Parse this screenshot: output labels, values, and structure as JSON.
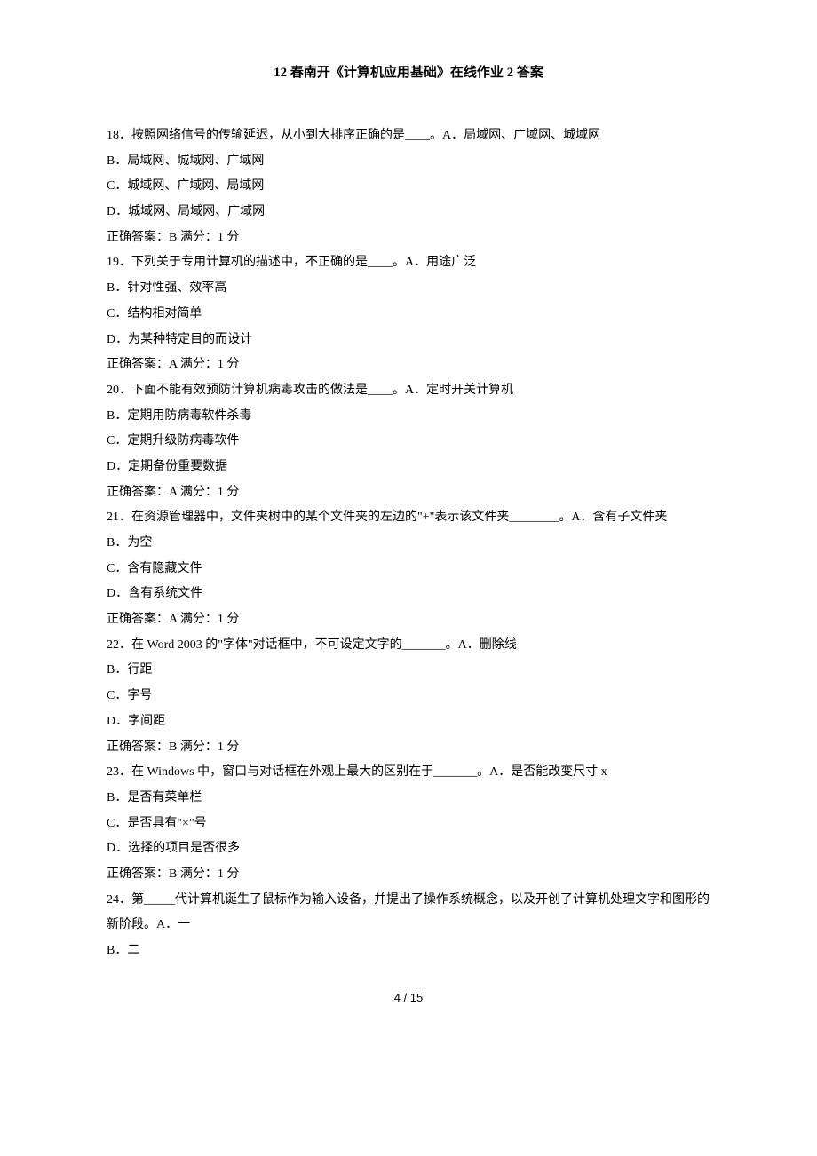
{
  "title": "12 春南开《计算机应用基础》在线作业 2 答案",
  "questions": [
    {
      "num": "18",
      "stem": "按照网络信号的传输延迟，从小到大排序正确的是____。A．局域网、广域网、城域网",
      "options": [
        "B．局域网、城域网、广域网",
        "C．城域网、广域网、局域网",
        "D．城域网、局域网、广域网"
      ],
      "answer": "正确答案：B      满分：1  分"
    },
    {
      "num": "19",
      "stem": "下列关于专用计算机的描述中，不正确的是____。A．用途广泛",
      "options": [
        "B．针对性强、效率高",
        "C．结构相对简单",
        "D．为某种特定目的而设计"
      ],
      "answer": "正确答案：A      满分：1  分"
    },
    {
      "num": "20",
      "stem": "下面不能有效预防计算机病毒攻击的做法是____。A．定时开关计算机",
      "options": [
        "B．定期用防病毒软件杀毒",
        "C．定期升级防病毒软件",
        "D．定期备份重要数据"
      ],
      "answer": "正确答案：A      满分：1  分"
    },
    {
      "num": "21",
      "stem": "在资源管理器中，文件夹树中的某个文件夹的左边的\"+\"表示该文件夹________。A．含有子文件夹",
      "options": [
        "B．为空",
        "C．含有隐藏文件",
        "D．含有系统文件"
      ],
      "answer": "正确答案：A      满分：1  分"
    },
    {
      "num": "22",
      "stem": "在 Word 2003 的\"字体\"对话框中，不可设定文字的_______。A．删除线",
      "options": [
        "B．行距",
        "C．字号",
        "D．字间距"
      ],
      "answer": "正确答案：B      满分：1  分"
    },
    {
      "num": "23",
      "stem": "在 Windows 中，窗口与对话框在外观上最大的区别在于_______。A．是否能改变尺寸 x",
      "options": [
        "B．是否有菜单栏",
        "C．是否具有\"×\"号",
        "D．选择的项目是否很多"
      ],
      "answer": "正确答案：B      满分：1  分"
    },
    {
      "num": "24",
      "stem": "第_____代计算机诞生了鼠标作为输入设备，并提出了操作系统概念，以及开创了计算机处理文字和图形的新阶段。A．一",
      "options": [
        "B．二"
      ],
      "answer": ""
    }
  ],
  "pageNumber": "4  /  15"
}
